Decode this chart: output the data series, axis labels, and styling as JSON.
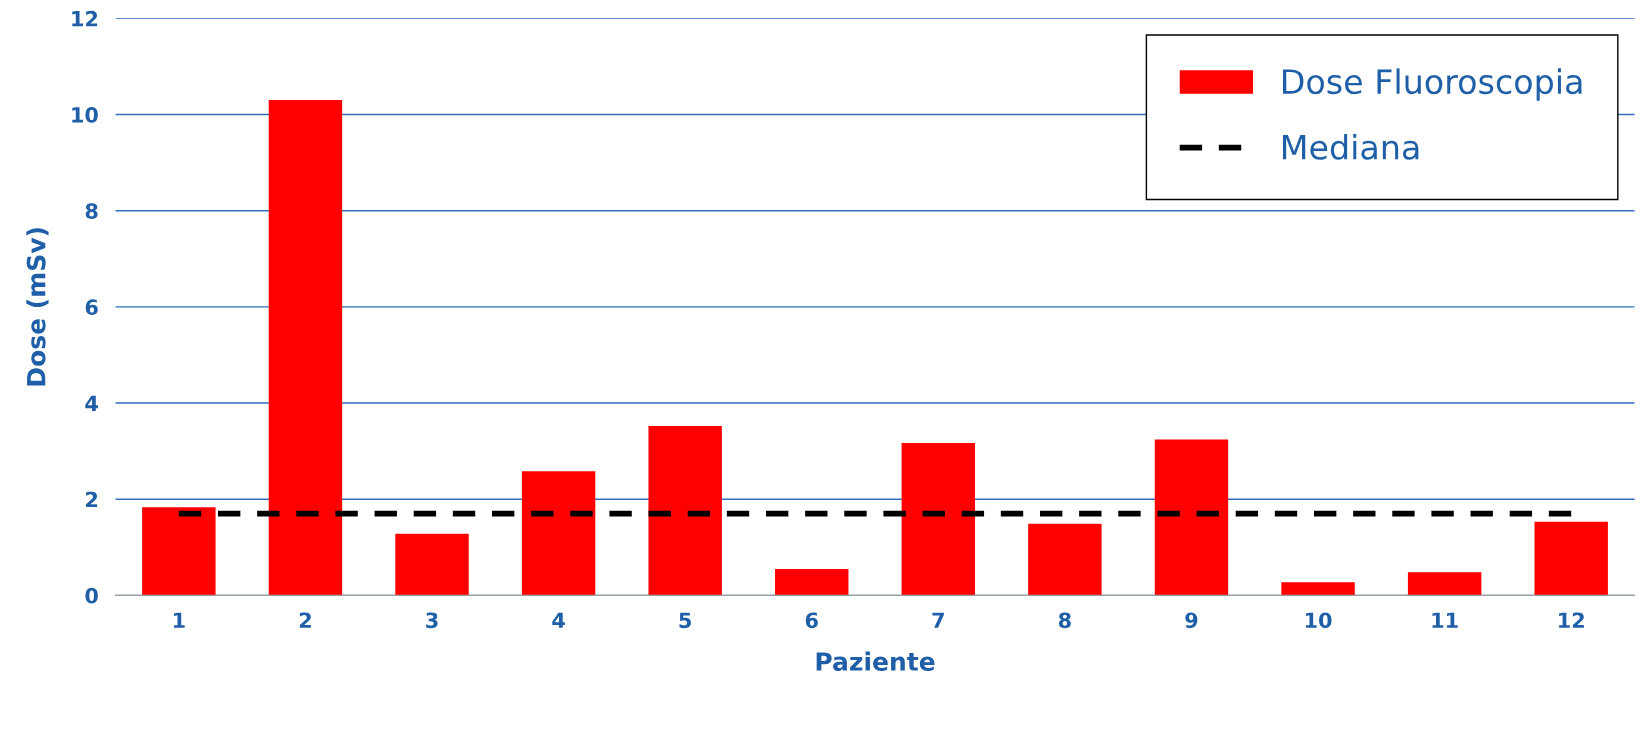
{
  "chart_data": {
    "type": "bar",
    "xlabel": "Paziente",
    "ylabel": "Dose (mSv)",
    "categories": [
      "1",
      "2",
      "3",
      "4",
      "5",
      "6",
      "7",
      "8",
      "9",
      "10",
      "11",
      "12"
    ],
    "series": [
      {
        "name": "Dose Fluoroscopia",
        "color": "#ff0000",
        "values": [
          1.83,
          10.3,
          1.28,
          2.58,
          3.52,
          0.55,
          3.17,
          1.49,
          3.24,
          0.27,
          0.48,
          1.53
        ]
      },
      {
        "name": "Mediana",
        "type": "line",
        "color": "#000000",
        "line_style": "dashed",
        "marker": "none",
        "values": [
          1.7,
          1.7,
          1.7,
          1.7,
          1.7,
          1.7,
          1.7,
          1.7,
          1.7,
          1.7,
          1.7,
          1.7
        ]
      }
    ],
    "ylim": [
      0,
      12
    ],
    "yticks": [
      0,
      2,
      4,
      6,
      8,
      10,
      12
    ],
    "grid": "y",
    "legend": "top right"
  }
}
